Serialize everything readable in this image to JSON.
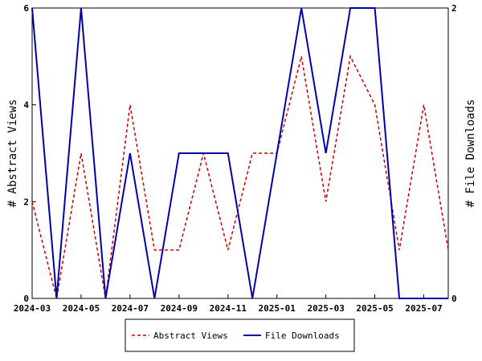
{
  "chart_data": {
    "type": "line",
    "x": [
      "2024-03",
      "2024-04",
      "2024-05",
      "2024-06",
      "2024-07",
      "2024-08",
      "2024-09",
      "2024-10",
      "2024-11",
      "2024-12",
      "2025-01",
      "2025-02",
      "2025-03",
      "2025-04",
      "2025-05",
      "2025-06",
      "2025-07",
      "2025-08"
    ],
    "x_ticks": [
      "2024-03",
      "2024-05",
      "2024-07",
      "2024-09",
      "2024-11",
      "2025-01",
      "2025-03",
      "2025-05",
      "2025-07"
    ],
    "series": [
      {
        "name": "Abstract Views",
        "axis": "left",
        "color": "#cc0000",
        "dash": "dashed",
        "values": [
          2,
          0,
          3,
          0,
          4,
          1,
          1,
          3,
          1,
          3,
          3,
          5,
          2,
          5,
          4,
          1,
          4,
          1
        ]
      },
      {
        "name": "File Downloads",
        "axis": "right",
        "color": "#0000aa",
        "dash": "solid",
        "values": [
          2,
          0,
          2,
          0,
          1,
          0,
          1,
          1,
          1,
          0,
          1,
          2,
          1,
          2,
          2,
          0,
          0,
          0
        ]
      }
    ],
    "ylabel": "# Abstract Views",
    "ylim": [
      0,
      6
    ],
    "yticks": [
      "0",
      "2",
      "4",
      "6"
    ],
    "y2label": "# File Downloads",
    "y2lim": [
      0,
      2
    ],
    "y2ticks": [
      "0",
      "2"
    ],
    "legend_position": "bottom-center",
    "grid": false
  }
}
